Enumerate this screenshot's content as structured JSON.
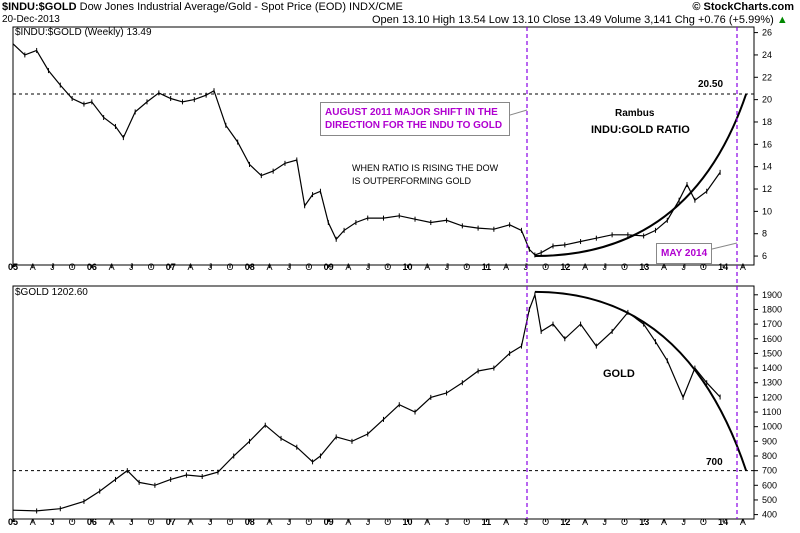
{
  "header": {
    "symbol_bold": "$INDU:$GOLD",
    "description": "Dow Jones Industrial Average/Gold - Spot Price (EOD)",
    "exchange": "INDX/CME",
    "brand": "© StockCharts.com",
    "date": "20-Dec-2013",
    "quote": "Open 13.10  High 13.54  Low 13.10  Close 13.49  Volume 3,141  Chg +0.76 (+5.99%)",
    "quote_arrow": "▲"
  },
  "top_panel": {
    "label": "$INDU:$GOLD (Weekly) 13.49"
  },
  "bottom_panel": {
    "label": "$GOLD 1202.60"
  },
  "annotations": {
    "callout_august": "AUGUST 2011 MAJOR SHIFT IN THE DIRECTION FOR THE INDU TO GOLD",
    "callout_may": "MAY 2014",
    "rambus": "Rambus",
    "ratio_title": "INDU:GOLD RATIO",
    "rising_note": "WHEN RATIO IS RISING THE DOW IS OUTPERFORMING GOLD",
    "level_2050": "20.50",
    "gold_label": "GOLD",
    "level_700": "700"
  },
  "colors": {
    "vline": "#8a00e6",
    "callout_text": "#b000d0",
    "price": "#000000"
  },
  "chart_data": [
    {
      "type": "line",
      "title": "$INDU:$GOLD (Weekly) 13.49",
      "x_ticks": [
        "05",
        "A",
        "J",
        "O",
        "06",
        "A",
        "J",
        "O",
        "07",
        "A",
        "J",
        "O",
        "08",
        "A",
        "J",
        "O",
        "09",
        "A",
        "J",
        "O",
        "10",
        "A",
        "J",
        "O",
        "11",
        "A",
        "J",
        "O",
        "12",
        "A",
        "J",
        "O",
        "13",
        "A",
        "J",
        "O",
        "14",
        "A"
      ],
      "y_ticks": [
        6,
        8,
        10,
        12,
        14,
        16,
        18,
        20,
        22,
        24,
        26
      ],
      "ylim": [
        5.2,
        26.5
      ],
      "xlim": [
        2005.0,
        2014.4
      ],
      "series": [
        {
          "x": [
            2005.0,
            2005.15,
            2005.3,
            2005.45,
            2005.6,
            2005.75,
            2005.9,
            2006.0,
            2006.15,
            2006.3,
            2006.4,
            2006.55,
            2006.7,
            2006.85,
            2007.0,
            2007.15,
            2007.3,
            2007.45,
            2007.55,
            2007.7,
            2007.85,
            2008.0,
            2008.15,
            2008.3,
            2008.45,
            2008.6,
            2008.7,
            2008.8,
            2008.9,
            2009.0,
            2009.1,
            2009.2,
            2009.35,
            2009.5,
            2009.7,
            2009.9,
            2010.1,
            2010.3,
            2010.5,
            2010.7,
            2010.9,
            2011.1,
            2011.3,
            2011.45,
            2011.55,
            2011.62,
            2011.7,
            2011.85,
            2012.0,
            2012.2,
            2012.4,
            2012.6,
            2012.8,
            2013.0,
            2013.15,
            2013.3,
            2013.45,
            2013.55,
            2013.65,
            2013.8,
            2013.97
          ],
          "values": [
            25.0,
            24.0,
            24.4,
            22.6,
            21.3,
            20.1,
            19.6,
            19.8,
            18.4,
            17.6,
            16.6,
            18.9,
            19.8,
            20.6,
            20.1,
            19.8,
            20.0,
            20.4,
            20.8,
            17.7,
            16.2,
            14.2,
            13.2,
            13.6,
            14.3,
            14.6,
            10.5,
            11.5,
            11.8,
            9.0,
            7.5,
            8.3,
            9.0,
            9.4,
            9.4,
            9.6,
            9.3,
            9.0,
            9.2,
            8.7,
            8.5,
            8.4,
            8.8,
            8.3,
            6.6,
            6.1,
            6.3,
            6.9,
            7.0,
            7.3,
            7.6,
            7.9,
            7.9,
            7.8,
            8.3,
            9.2,
            11.0,
            12.4,
            11.0,
            11.8,
            13.49
          ]
        }
      ],
      "horizontal_line": 20.5,
      "projection_curve": {
        "from": [
          2011.62,
          6.0
        ],
        "to": [
          2014.3,
          20.5
        ]
      }
    },
    {
      "type": "line",
      "title": "$GOLD 1202.60",
      "x_ticks": [
        "05",
        "A",
        "J",
        "O",
        "06",
        "A",
        "J",
        "O",
        "07",
        "A",
        "J",
        "O",
        "08",
        "A",
        "J",
        "O",
        "09",
        "A",
        "J",
        "O",
        "10",
        "A",
        "J",
        "O",
        "11",
        "A",
        "J",
        "O",
        "12",
        "A",
        "J",
        "O",
        "13",
        "A",
        "J",
        "O",
        "14",
        "A"
      ],
      "y_ticks": [
        400,
        500,
        600,
        700,
        800,
        900,
        1000,
        1100,
        1200,
        1300,
        1400,
        1500,
        1600,
        1700,
        1800,
        1900
      ],
      "ylim": [
        370,
        1960
      ],
      "xlim": [
        2005.0,
        2014.4
      ],
      "series": [
        {
          "x": [
            2005.0,
            2005.3,
            2005.6,
            2005.9,
            2006.1,
            2006.3,
            2006.45,
            2006.6,
            2006.8,
            2007.0,
            2007.2,
            2007.4,
            2007.6,
            2007.8,
            2008.0,
            2008.2,
            2008.4,
            2008.6,
            2008.8,
            2008.9,
            2009.1,
            2009.3,
            2009.5,
            2009.7,
            2009.9,
            2010.1,
            2010.3,
            2010.5,
            2010.7,
            2010.9,
            2011.1,
            2011.3,
            2011.45,
            2011.55,
            2011.62,
            2011.7,
            2011.85,
            2012.0,
            2012.2,
            2012.4,
            2012.6,
            2012.8,
            2013.0,
            2013.15,
            2013.3,
            2013.5,
            2013.65,
            2013.8,
            2013.97
          ],
          "values": [
            430,
            425,
            440,
            490,
            560,
            640,
            700,
            620,
            600,
            640,
            670,
            660,
            690,
            800,
            900,
            1010,
            920,
            860,
            760,
            800,
            930,
            900,
            950,
            1050,
            1150,
            1100,
            1200,
            1230,
            1300,
            1380,
            1400,
            1500,
            1550,
            1800,
            1900,
            1650,
            1700,
            1600,
            1700,
            1550,
            1650,
            1780,
            1700,
            1580,
            1450,
            1200,
            1400,
            1300,
            1202.6
          ]
        }
      ],
      "horizontal_line": 700,
      "projection_curve": {
        "from": [
          2011.62,
          1920
        ],
        "to": [
          2014.3,
          700
        ]
      }
    }
  ]
}
